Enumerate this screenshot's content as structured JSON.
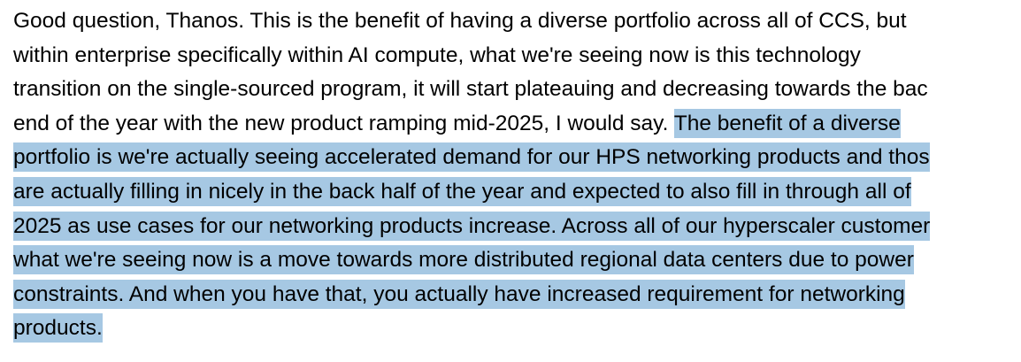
{
  "colors": {
    "text": "#000000",
    "background": "#ffffff",
    "selection": "#a6c8e3"
  },
  "lines": [
    [
      "Good question, Thanos. This is the benefit of having a diverse portfolio across all of CCS, but",
      ""
    ],
    [
      "within enterprise specifically within AI compute, what we're seeing now is this technology",
      ""
    ],
    [
      "transition on the single-sourced program, it will start plateauing and decreasing towards the bac",
      ""
    ],
    [
      "end of the year with the new product ramping mid-2025, I would say. ",
      "The benefit of a diverse"
    ],
    [
      "",
      "portfolio is we're actually seeing accelerated demand for our HPS networking products and thos"
    ],
    [
      "",
      "are actually filling in nicely in the back half of the year and expected to also fill in through all of"
    ],
    [
      "",
      "2025 as use cases for our networking products increase. Across all of our hyperscaler customer"
    ],
    [
      "",
      "what we're seeing now is a move towards more distributed regional data centers due to power"
    ],
    [
      "",
      "constraints. And when you have that, you actually have increased requirement for networking"
    ],
    [
      "",
      "products."
    ]
  ]
}
